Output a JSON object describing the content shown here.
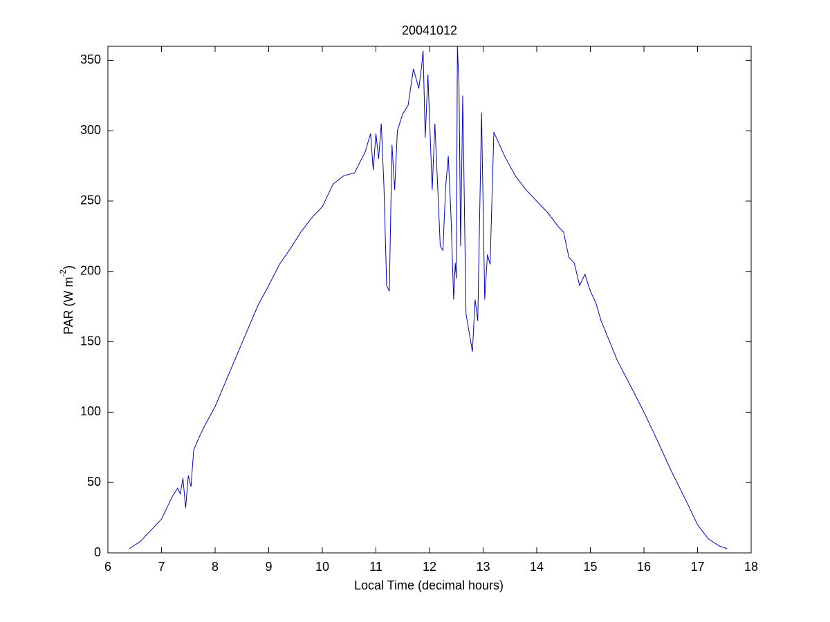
{
  "chart_data": {
    "type": "line",
    "title": "20041012",
    "xlabel": "Local Time (decimal hours)",
    "ylabel": [
      "PAR (W m",
      "-2",
      ")"
    ],
    "xlim": [
      6,
      18
    ],
    "ylim": [
      0,
      360
    ],
    "xticks": [
      6,
      7,
      8,
      9,
      10,
      11,
      12,
      13,
      14,
      15,
      16,
      17,
      18
    ],
    "yticks": [
      0,
      50,
      100,
      150,
      200,
      250,
      300,
      350
    ],
    "grid": false,
    "x": [
      6.4,
      6.6,
      6.8,
      7.0,
      7.1,
      7.2,
      7.3,
      7.35,
      7.4,
      7.45,
      7.5,
      7.55,
      7.6,
      7.7,
      7.8,
      8.0,
      8.2,
      8.4,
      8.6,
      8.8,
      9.0,
      9.2,
      9.4,
      9.6,
      9.8,
      10.0,
      10.2,
      10.4,
      10.6,
      10.8,
      10.9,
      10.95,
      11.0,
      11.05,
      11.1,
      11.15,
      11.2,
      11.25,
      11.3,
      11.35,
      11.4,
      11.5,
      11.6,
      11.7,
      11.8,
      11.85,
      11.88,
      11.92,
      11.97,
      12.05,
      12.1,
      12.15,
      12.2,
      12.25,
      12.3,
      12.35,
      12.4,
      12.45,
      12.48,
      12.5,
      12.52,
      12.55,
      12.58,
      12.62,
      12.68,
      12.8,
      12.85,
      12.9,
      12.97,
      13.03,
      13.08,
      13.13,
      13.2,
      13.4,
      13.6,
      13.8,
      14.0,
      14.2,
      14.4,
      14.5,
      14.6,
      14.7,
      14.8,
      14.9,
      15.0,
      15.1,
      15.2,
      15.5,
      15.8,
      16.0,
      16.2,
      16.5,
      16.8,
      17.0,
      17.2,
      17.4,
      17.55
    ],
    "series": [
      {
        "name": "PAR",
        "color": "#0000cc",
        "values": [
          3,
          8,
          16,
          24,
          32,
          40,
          46,
          42,
          53,
          32,
          55,
          47,
          73,
          82,
          90,
          104,
          122,
          140,
          158,
          176,
          190,
          205,
          216,
          228,
          238,
          246,
          262,
          268,
          270,
          285,
          298,
          272,
          298,
          280,
          305,
          260,
          190,
          186,
          290,
          258,
          300,
          312,
          318,
          344,
          330,
          345,
          357,
          295,
          340,
          258,
          305,
          262,
          218,
          215,
          260,
          282,
          240,
          180,
          206,
          195,
          360,
          332,
          218,
          325,
          170,
          143,
          180,
          165,
          313,
          180,
          212,
          205,
          299,
          282,
          268,
          258,
          250,
          242,
          232,
          228,
          210,
          206,
          190,
          198,
          186,
          178,
          165,
          137,
          115,
          100,
          84,
          59,
          36,
          20,
          10,
          5,
          3
        ]
      }
    ]
  }
}
